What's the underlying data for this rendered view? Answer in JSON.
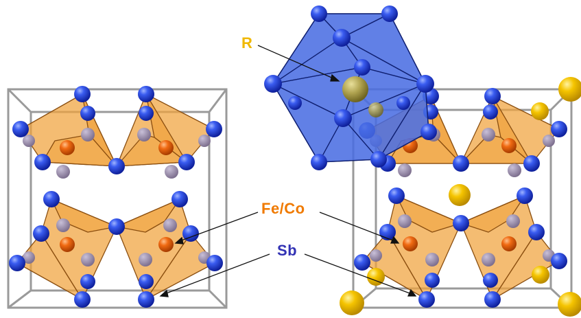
{
  "labels": {
    "r": "R",
    "feco": "Fe/Co",
    "sb": "Sb"
  },
  "colors": {
    "r_label": "#f0b800",
    "feco_label": "#f07a00",
    "sb_label": "#3232b4",
    "sb_atom": "#2545d8",
    "feco_atom": "#e86a10",
    "r_atom": "#f2c200",
    "octahedron_fill": "#f0a23c",
    "icosahedron_fill": "#3a5fd9",
    "cell_edge": "#9a9a9a"
  },
  "icons": {
    "atom_shape": "sphere",
    "polyhedra": [
      "octahedron",
      "icosahedron"
    ]
  }
}
